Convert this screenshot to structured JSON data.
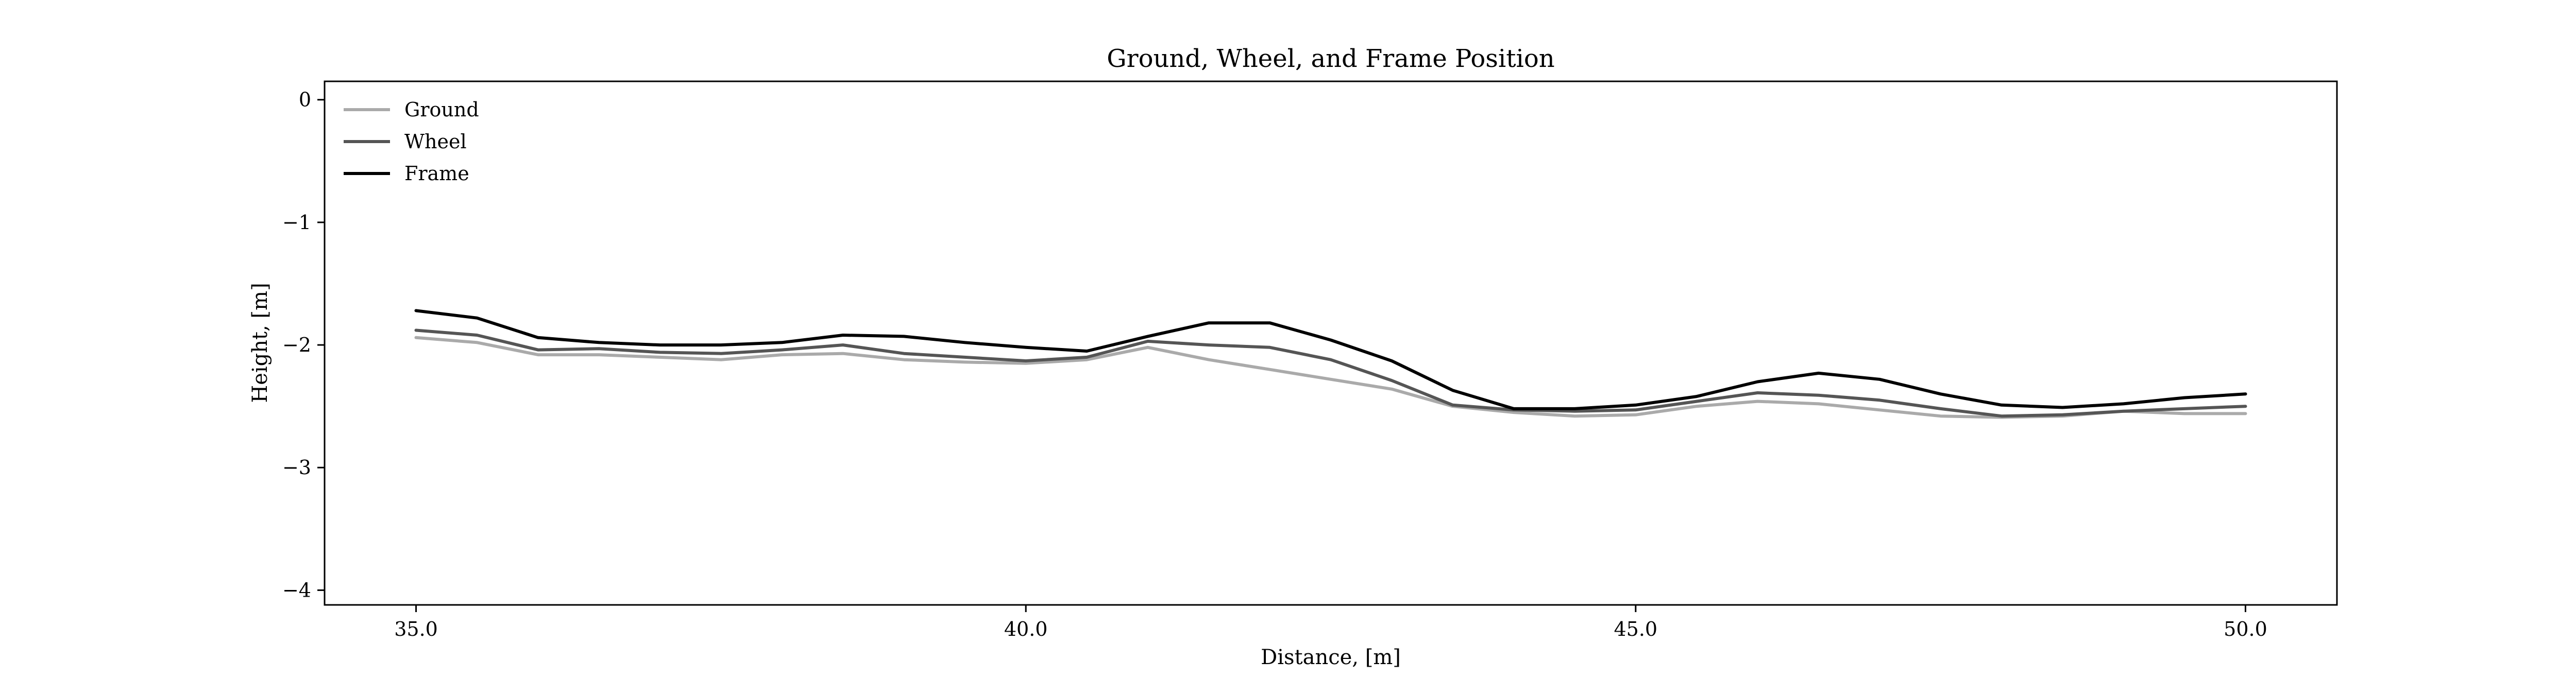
{
  "chart_data": {
    "type": "line",
    "title": "Ground, Wheel, and Frame Position",
    "xlabel": "Distance, [m]",
    "ylabel": "Height, [m]",
    "xlim": [
      34.25,
      50.75
    ],
    "ylim": [
      -4.12,
      0.15
    ],
    "xticks": [
      35.0,
      40.0,
      45.0,
      50.0
    ],
    "xtick_labels": [
      "35.0",
      "40.0",
      "45.0",
      "50.0"
    ],
    "yticks": [
      0,
      -1,
      -2,
      -3,
      -4
    ],
    "ytick_labels": [
      "0",
      "−1",
      "−2",
      "−3",
      "−4"
    ],
    "grid": false,
    "legend_position": "top-left",
    "x": [
      35.0,
      35.5,
      36.0,
      36.5,
      37.0,
      37.5,
      38.0,
      38.5,
      39.0,
      39.5,
      40.0,
      40.5,
      41.0,
      41.5,
      42.0,
      42.5,
      43.0,
      43.5,
      44.0,
      44.5,
      45.0,
      45.5,
      46.0,
      46.5,
      47.0,
      47.5,
      48.0,
      48.5,
      49.0,
      49.5,
      50.0
    ],
    "series": [
      {
        "name": "Ground",
        "color": "#aaaaaa",
        "values": [
          -1.94,
          -1.98,
          -2.08,
          -2.08,
          -2.1,
          -2.12,
          -2.08,
          -2.07,
          -2.12,
          -2.14,
          -2.15,
          -2.12,
          -2.02,
          -2.12,
          -2.2,
          -2.28,
          -2.36,
          -2.5,
          -2.55,
          -2.58,
          -2.57,
          -2.5,
          -2.46,
          -2.48,
          -2.53,
          -2.58,
          -2.59,
          -2.58,
          -2.54,
          -2.56,
          -2.56
        ]
      },
      {
        "name": "Wheel",
        "color": "#555555",
        "values": [
          -1.88,
          -1.92,
          -2.04,
          -2.03,
          -2.06,
          -2.07,
          -2.04,
          -2.0,
          -2.07,
          -2.1,
          -2.13,
          -2.1,
          -1.97,
          -2.0,
          -2.02,
          -2.12,
          -2.29,
          -2.49,
          -2.53,
          -2.54,
          -2.53,
          -2.46,
          -2.39,
          -2.41,
          -2.45,
          -2.52,
          -2.58,
          -2.57,
          -2.54,
          -2.52,
          -2.5
        ]
      },
      {
        "name": "Frame",
        "color": "#000000",
        "values": [
          -1.72,
          -1.78,
          -1.94,
          -1.98,
          -2.0,
          -2.0,
          -1.98,
          -1.92,
          -1.93,
          -1.98,
          -2.02,
          -2.05,
          -1.93,
          -1.82,
          -1.82,
          -1.96,
          -2.13,
          -2.37,
          -2.52,
          -2.52,
          -2.49,
          -2.42,
          -2.3,
          -2.23,
          -2.28,
          -2.4,
          -2.49,
          -2.51,
          -2.48,
          -2.43,
          -2.4
        ]
      }
    ]
  }
}
